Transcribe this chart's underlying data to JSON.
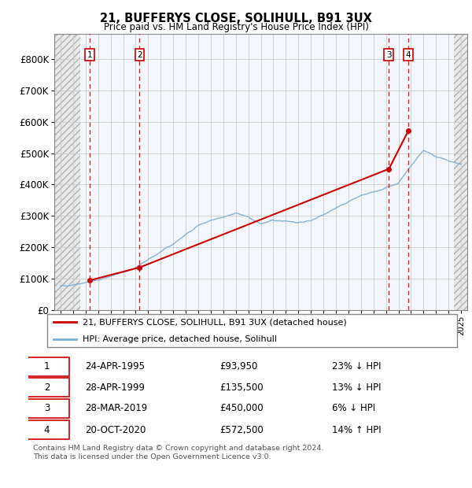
{
  "title1": "21, BUFFERYS CLOSE, SOLIHULL, B91 3UX",
  "title2": "Price paid vs. HM Land Registry's House Price Index (HPI)",
  "ylim": [
    0,
    880000
  ],
  "yticks": [
    0,
    100000,
    200000,
    300000,
    400000,
    500000,
    600000,
    700000,
    800000
  ],
  "ytick_labels": [
    "£0",
    "£100K",
    "£200K",
    "£300K",
    "£400K",
    "£500K",
    "£600K",
    "£700K",
    "£800K"
  ],
  "xlim_start": 1992.5,
  "xlim_end": 2025.5,
  "hatch_left_end": 1994.58,
  "hatch_right_start": 2024.42,
  "sale_dates": [
    1995.31,
    1999.32,
    2019.24,
    2020.8
  ],
  "sale_prices": [
    93950,
    135500,
    450000,
    572500
  ],
  "sale_labels": [
    "1",
    "2",
    "3",
    "4"
  ],
  "sale_line_color": "#cc0000",
  "hpi_line_color": "#7bafd4",
  "vline_color": "#cc0000",
  "grid_color": "#cccccc",
  "legend_entries": [
    "21, BUFFERYS CLOSE, SOLIHULL, B91 3UX (detached house)",
    "HPI: Average price, detached house, Solihull"
  ],
  "table_rows": [
    [
      "1",
      "24-APR-1995",
      "£93,950",
      "23% ↓ HPI"
    ],
    [
      "2",
      "28-APR-1999",
      "£135,500",
      "13% ↓ HPI"
    ],
    [
      "3",
      "28-MAR-2019",
      "£450,000",
      "6% ↓ HPI"
    ],
    [
      "4",
      "20-OCT-2020",
      "£572,500",
      "14% ↑ HPI"
    ]
  ],
  "footnote": "Contains HM Land Registry data © Crown copyright and database right 2024.\nThis data is licensed under the Open Government Licence v3.0.",
  "hpi_anchors_years": [
    1993,
    1994,
    1995,
    1996,
    1997,
    1998,
    1999,
    2000,
    2001,
    2002,
    2003,
    2004,
    2005,
    2006,
    2007,
    2008,
    2009,
    2010,
    2011,
    2012,
    2013,
    2014,
    2015,
    2016,
    2017,
    2018,
    2019,
    2020,
    2021,
    2022,
    2023,
    2024,
    2025
  ],
  "hpi_anchors_vals": [
    75000,
    80000,
    88000,
    95000,
    108000,
    120000,
    135000,
    160000,
    185000,
    210000,
    240000,
    270000,
    285000,
    295000,
    310000,
    295000,
    275000,
    285000,
    285000,
    278000,
    285000,
    305000,
    325000,
    345000,
    365000,
    375000,
    390000,
    405000,
    460000,
    510000,
    490000,
    475000,
    465000
  ]
}
